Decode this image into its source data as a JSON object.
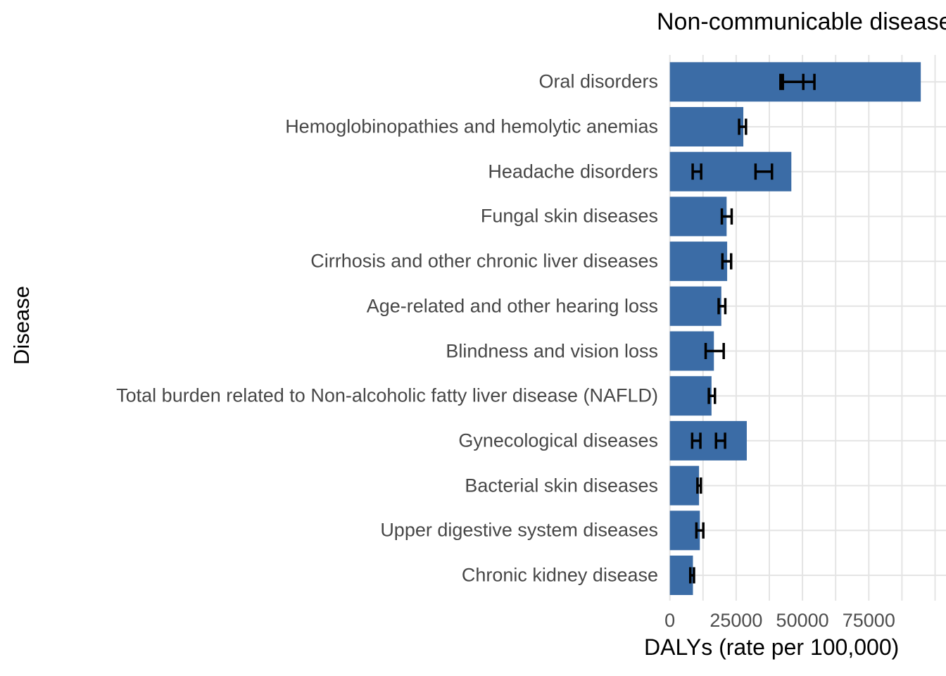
{
  "chart_data": {
    "type": "bar",
    "orientation": "horizontal",
    "title": "Non-communicable diseases",
    "xlabel": "DALYs (rate per 100,000)",
    "ylabel": "Disease",
    "categories": [
      "Oral disorders",
      "Hemoglobinopathies and hemolytic anemias",
      "Headache disorders",
      "Fungal skin diseases",
      "Cirrhosis and other chronic liver diseases",
      "Age-related and other hearing loss",
      "Blindness and vision loss",
      "Total burden related to Non-alcoholic fatty liver disease (NAFLD)",
      "Gynecological diseases",
      "Bacterial skin diseases",
      "Upper digestive system diseases",
      "Chronic kidney disease"
    ],
    "values": [
      94600,
      27700,
      45800,
      21400,
      21600,
      19400,
      16600,
      15700,
      29000,
      11000,
      11300,
      8700
    ],
    "error_bars": [
      [
        [
          41700,
          50300
        ],
        [
          42600,
          54500
        ]
      ],
      [
        [
          26100,
          28700
        ]
      ],
      [
        [
          8600,
          11800
        ],
        [
          32300,
          38500
        ]
      ],
      [
        [
          19600,
          23300
        ]
      ],
      [
        [
          19800,
          23100
        ]
      ],
      [
        [
          18400,
          20900
        ]
      ],
      [
        [
          13500,
          20300
        ]
      ],
      [
        [
          14700,
          17000
        ]
      ],
      [
        [
          8400,
          11500
        ],
        [
          17400,
          20800
        ]
      ],
      [
        [
          10400,
          11700
        ]
      ],
      [
        [
          10000,
          12600
        ]
      ],
      [
        [
          7700,
          9100
        ]
      ]
    ],
    "x_ticks": [
      0,
      25000,
      50000,
      75000
    ],
    "x_tick_labels": [
      "0",
      "25000",
      "50000",
      "75000"
    ],
    "xlim": [
      0,
      100000
    ],
    "grid_minor_step": 12500,
    "grid": "on",
    "legend": "none",
    "colors": {
      "bar": "#3B6CA6",
      "error_bar": "#000000",
      "gridline": "#E4E4E4",
      "tick_text": "#4D4D4D",
      "label_text": "#474747",
      "title_text": "#000000",
      "background": "#FFFFFF"
    }
  }
}
